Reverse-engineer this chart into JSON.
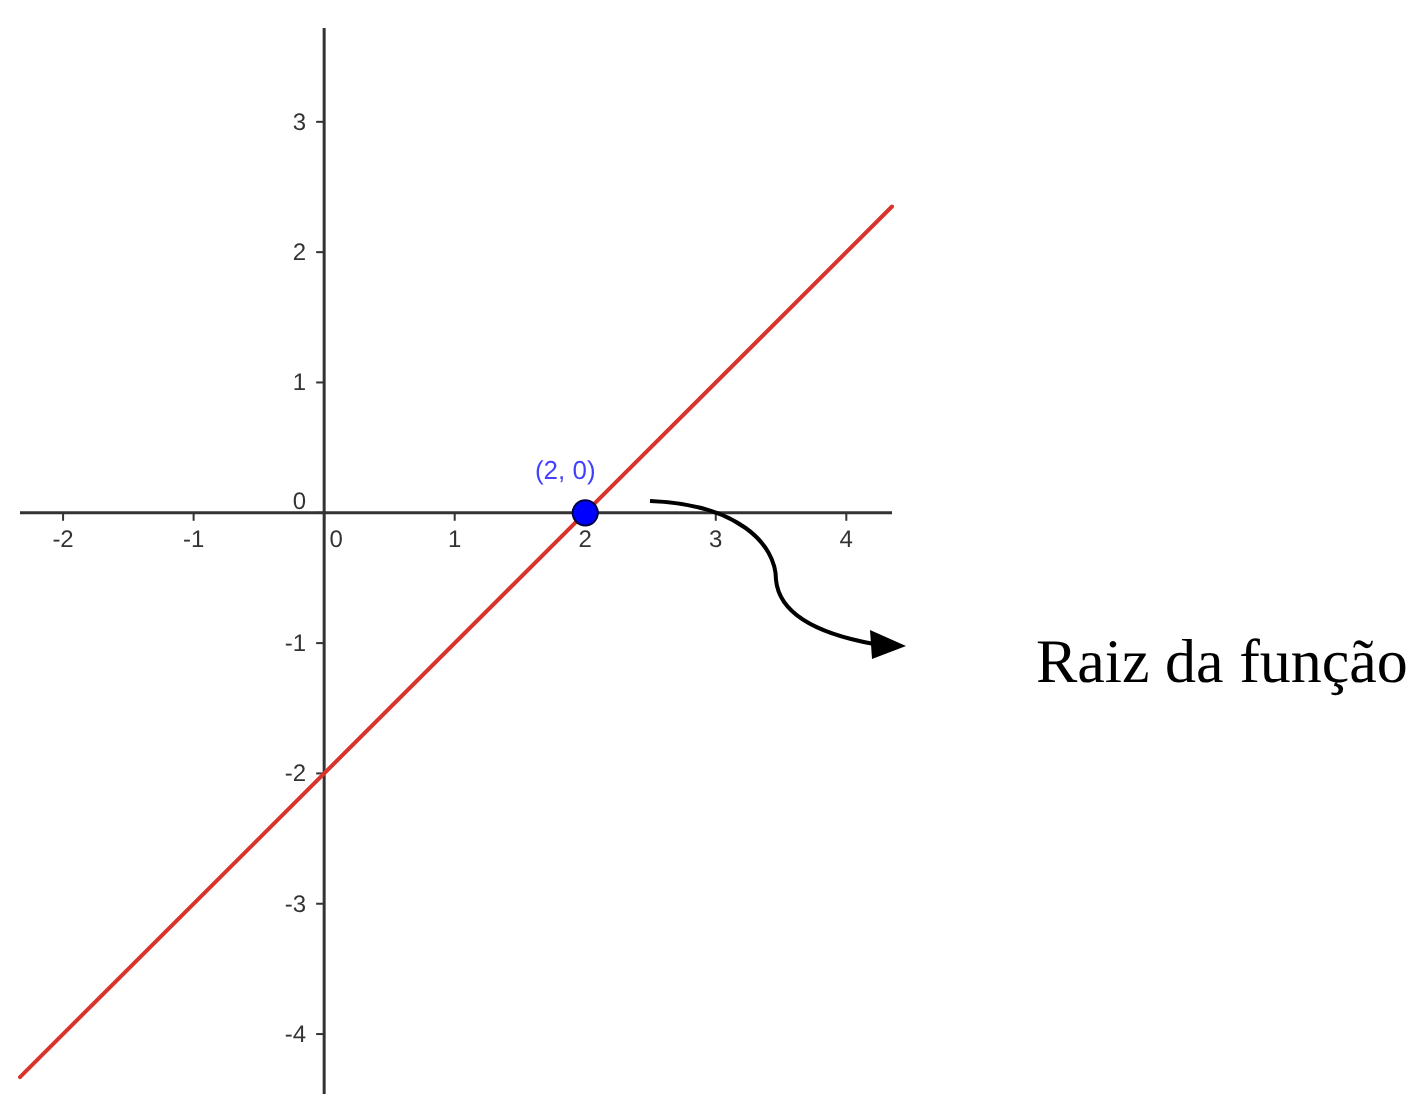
{
  "chart_data": {
    "type": "line",
    "xlim": [
      -2.33,
      4.35
    ],
    "ylim": [
      -4.46,
      3.72
    ],
    "xticks": [
      -2,
      -1,
      0,
      1,
      2,
      3,
      4
    ],
    "yticks": [
      -4,
      -3,
      -2,
      -1,
      0,
      1,
      2,
      3
    ],
    "series": [
      {
        "color": "#d8342c",
        "x": [
          -2.33,
          4.35
        ],
        "values": [
          -4.33,
          2.35
        ]
      },
      {
        "type": "scatter",
        "color": "#0000ff",
        "marker": "circle",
        "x": [
          2
        ],
        "values": [
          0
        ],
        "value_labels": [
          "(2, 0)"
        ]
      }
    ],
    "annotations": [
      "Raiz da função"
    ]
  }
}
